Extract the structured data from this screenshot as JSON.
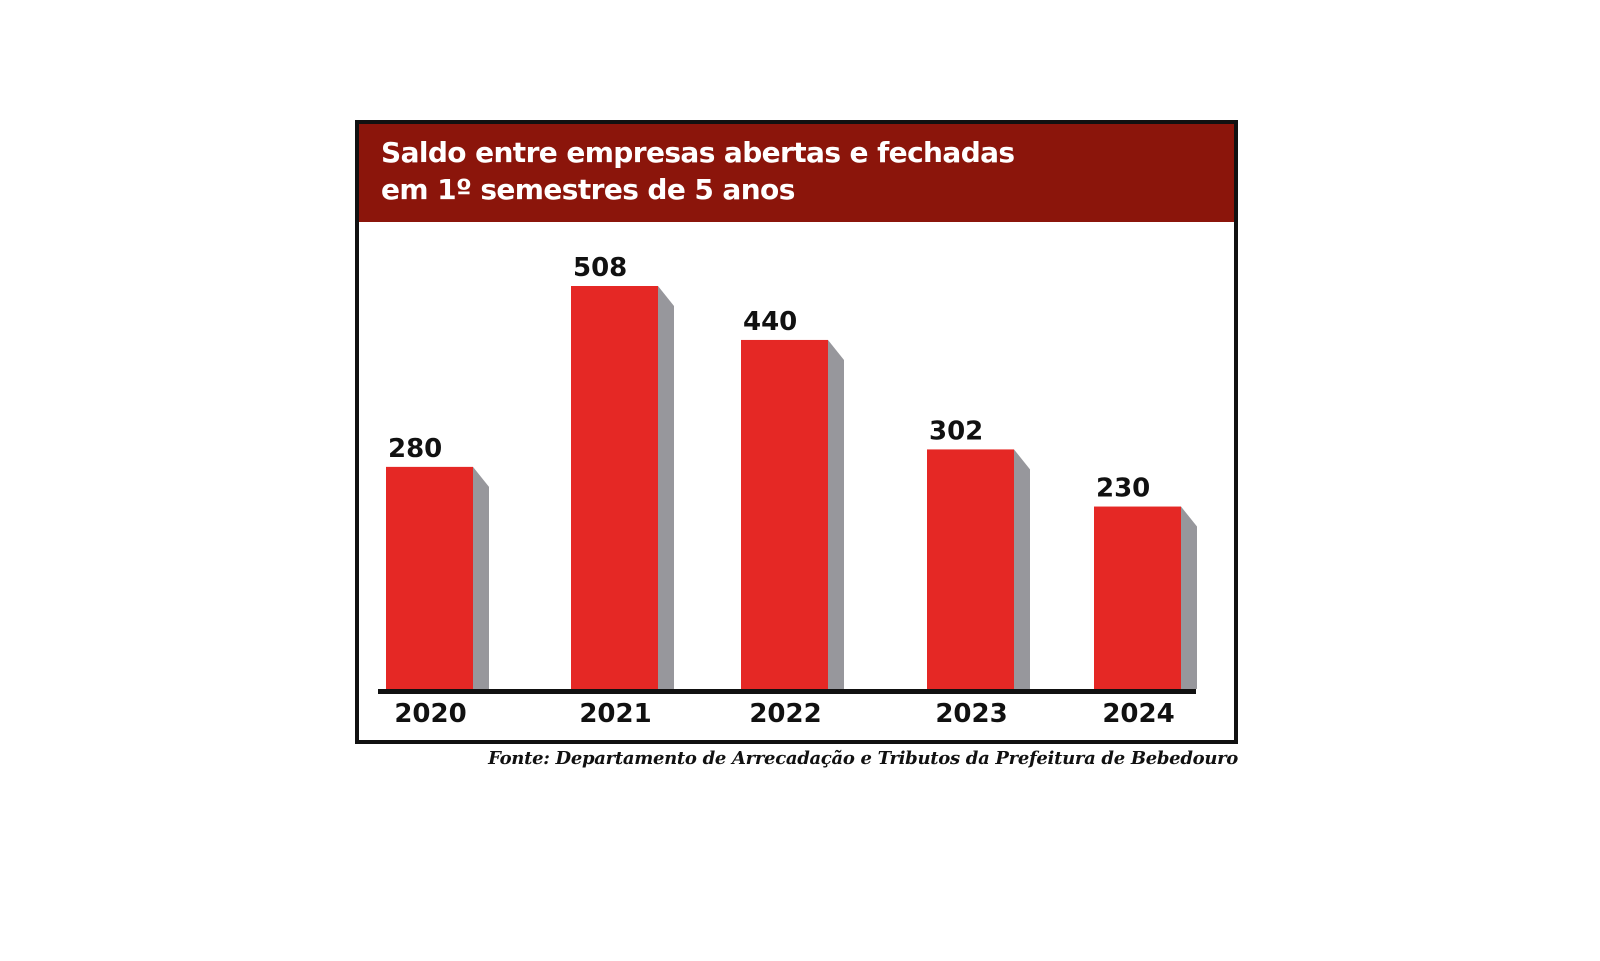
{
  "chart": {
    "title_line1": "Saldo entre empresas abertas e fechadas",
    "title_line2": "em 1º semestres de 5 anos",
    "source": "Fonte: Departamento de Arrecadação e Tributos da Prefeitura de Bebedouro"
  },
  "colors": {
    "header": "#8b150b",
    "bar": "#e52825",
    "bar_side": "#97979c",
    "axis": "#111111"
  },
  "chart_data": {
    "type": "bar",
    "title": "Saldo entre empresas abertas e fechadas em 1º semestres de 5 anos",
    "categories": [
      "2020",
      "2021",
      "2022",
      "2023",
      "2024"
    ],
    "values": [
      280,
      508,
      440,
      302,
      230
    ],
    "data_labels": [
      "280",
      "508",
      "440",
      "302",
      "230"
    ],
    "xlabel": "",
    "ylabel": "",
    "ylim": [
      0,
      508
    ],
    "grid": false,
    "legend": "none"
  }
}
